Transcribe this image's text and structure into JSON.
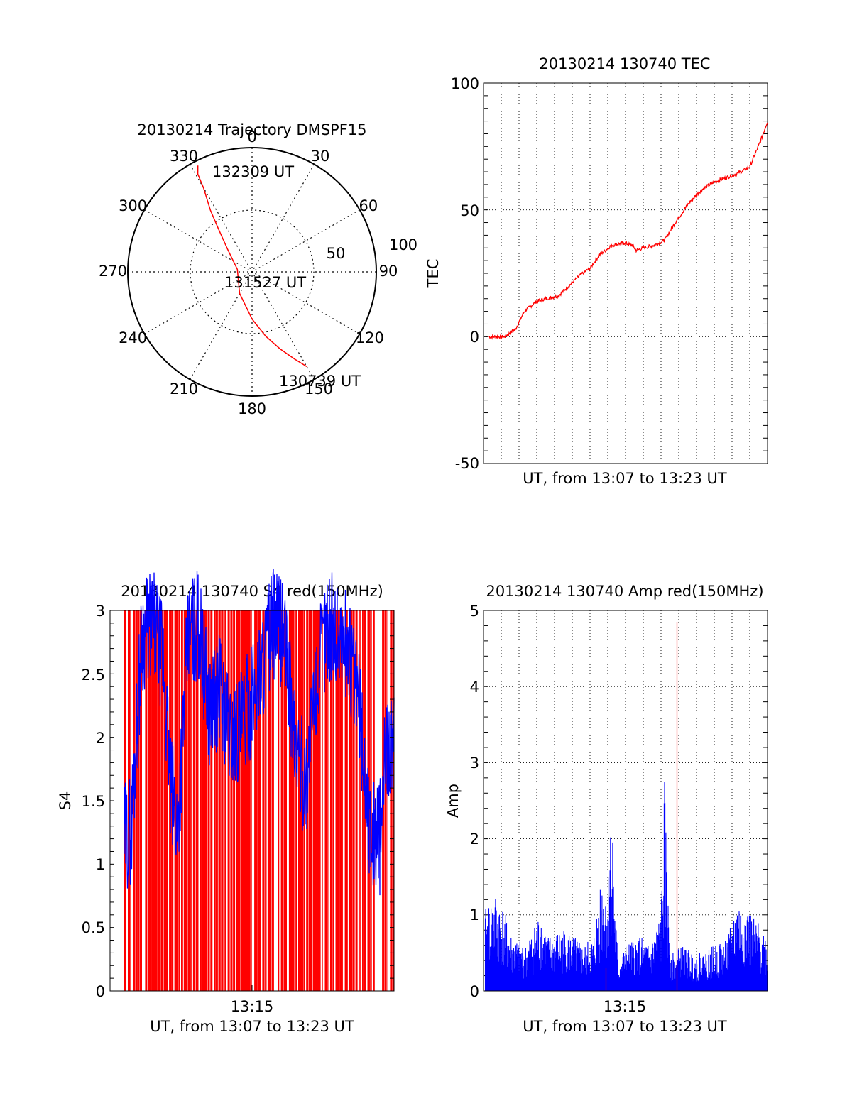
{
  "chart_data": [
    {
      "id": "polar",
      "type": "scatter",
      "title": "20130214 Trajectory DMSPF15",
      "angle_labels": [
        "0",
        "30",
        "60",
        "90",
        "120",
        "150",
        "180",
        "210",
        "240",
        "270",
        "300",
        "330"
      ],
      "radius_labels": [
        "50",
        "100"
      ],
      "rlim": [
        0,
        100
      ],
      "track_color": "#ff0000",
      "track": [
        {
          "az": 150,
          "r": 88
        },
        {
          "az": 154,
          "r": 78
        },
        {
          "az": 160,
          "r": 66
        },
        {
          "az": 168,
          "r": 53
        },
        {
          "az": 180,
          "r": 38
        },
        {
          "az": 210,
          "r": 20
        },
        {
          "az": 280,
          "r": 12
        },
        {
          "az": 313,
          "r": 27
        },
        {
          "az": 322,
          "r": 44
        },
        {
          "az": 326,
          "r": 60
        },
        {
          "az": 330,
          "r": 78
        },
        {
          "az": 331,
          "r": 90
        },
        {
          "az": 333,
          "r": 96
        }
      ],
      "annotations": [
        {
          "text": "132309 UT",
          "az": 333,
          "r": 96
        },
        {
          "text": "131527 UT",
          "az": 210,
          "r": 20
        },
        {
          "text": "130739 UT",
          "az": 150,
          "r": 88
        }
      ]
    },
    {
      "id": "tec",
      "type": "line",
      "title": "20130214 130740 TEC",
      "xlabel": "UT, from 13:07 to 13:23 UT",
      "ylabel": "TEC",
      "ylim": [
        -50,
        100
      ],
      "yticks": [
        "100",
        "50",
        "0",
        "-50"
      ],
      "xlim": [
        0,
        16
      ],
      "color": "#ff0000",
      "x": [
        0.3,
        0.8,
        1.2,
        1.8,
        2.3,
        3.0,
        3.5,
        4.2,
        4.8,
        5.4,
        6.0,
        6.5,
        7.2,
        7.9,
        8.4,
        8.6,
        9.0,
        9.6,
        10.2,
        10.8,
        11.6,
        12.3,
        13.0,
        13.8,
        14.5,
        15.0,
        15.3,
        15.6,
        16.0
      ],
      "y": [
        0,
        0,
        0,
        3,
        10,
        14,
        15,
        16,
        20,
        24,
        27,
        32,
        36,
        37,
        36,
        34,
        35,
        36,
        38,
        45,
        53,
        58,
        61,
        63,
        65,
        67,
        72,
        77,
        85
      ]
    },
    {
      "id": "s4",
      "type": "line",
      "title": "20130214 130740 S4 red(150MHz)",
      "xlabel": "UT, from 13:07 to 13:23 UT",
      "ylabel": "S4",
      "ylim": [
        0,
        3
      ],
      "yticks": [
        "3",
        "2.5",
        "2",
        "1.5",
        "1",
        "0.5",
        "0"
      ],
      "xtick_label": "13:15",
      "xlim": [
        0,
        16
      ],
      "series": [
        {
          "color": "#ff0000",
          "kind": "dense-bars-to-3"
        },
        {
          "color": "#0000ff",
          "x": [
            0.8,
            1.2,
            1.8,
            2.4,
            3.0,
            3.4,
            3.8,
            4.4,
            5.0,
            5.6,
            6.2,
            6.8,
            7.4,
            8.0,
            8.6,
            9.2,
            9.8,
            10.4,
            11.0,
            11.6,
            12.2,
            12.8,
            13.4,
            14.0,
            14.6,
            15.2,
            15.6,
            16.0
          ],
          "y": [
            1.2,
            1.3,
            2.8,
            2.9,
            2.6,
            1.6,
            1.3,
            2.8,
            2.9,
            2.2,
            2.4,
            2.0,
            2.1,
            2.3,
            2.6,
            2.9,
            2.8,
            2.0,
            1.6,
            2.4,
            2.9,
            2.8,
            2.7,
            2.3,
            1.3,
            1.2,
            2.0,
            1.9
          ]
        }
      ]
    },
    {
      "id": "amp",
      "type": "line",
      "title": "20130214 130740 Amp red(150MHz)",
      "xlabel": "UT, from 13:07 to 13:23 UT",
      "ylabel": "Amp",
      "ylim": [
        0,
        5
      ],
      "yticks": [
        "5",
        "4",
        "3",
        "2",
        "1",
        "0"
      ],
      "xtick_label": "13:15",
      "xlim": [
        0,
        16
      ],
      "series": [
        {
          "color": "#0000ff",
          "x": [
            0.1,
            0.6,
            1.0,
            1.6,
            2.4,
            3.2,
            3.6,
            4.6,
            5.6,
            6.2,
            6.6,
            7.0,
            7.2,
            7.4,
            7.6,
            8.0,
            8.8,
            9.4,
            10.0,
            10.2,
            10.4,
            10.6,
            11.2,
            12.0,
            13.0,
            13.8,
            14.2,
            14.6,
            15.2,
            15.8,
            16.0
          ],
          "y": [
            0.9,
            1.1,
            1.0,
            0.6,
            0.5,
            0.9,
            0.6,
            0.7,
            0.5,
            0.6,
            1.3,
            1.2,
            2.4,
            1.0,
            0.3,
            0.5,
            0.6,
            0.5,
            0.9,
            2.3,
            1.0,
            0.4,
            0.5,
            0.4,
            0.5,
            0.6,
            1.0,
            1.0,
            0.8,
            0.7,
            0.5
          ]
        },
        {
          "color": "#ff0000",
          "spikes": [
            {
              "x": 10.9,
              "y": 4.85
            },
            {
              "x": 6.9,
              "y": 0.3
            }
          ]
        }
      ]
    }
  ]
}
